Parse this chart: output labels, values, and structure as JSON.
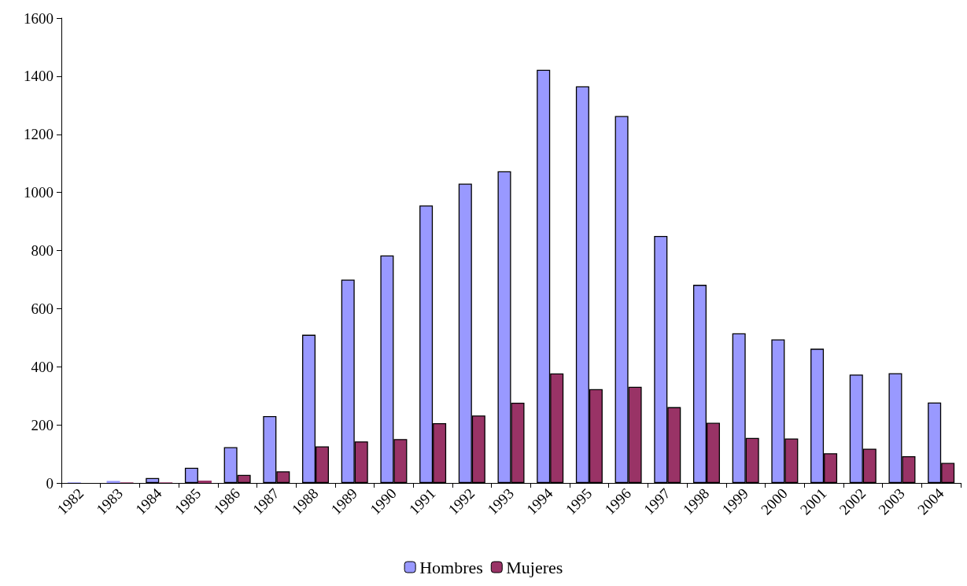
{
  "chart_data": {
    "type": "bar",
    "categories": [
      "1982",
      "1983",
      "1984",
      "1985",
      "1986",
      "1987",
      "1988",
      "1989",
      "1990",
      "1991",
      "1992",
      "1993",
      "1994",
      "1995",
      "1996",
      "1997",
      "1998",
      "1999",
      "2000",
      "2001",
      "2002",
      "2003",
      "2004"
    ],
    "series": [
      {
        "name": "Hombres",
        "color": "#9999ff",
        "values": [
          2,
          7,
          17,
          52,
          123,
          230,
          510,
          700,
          783,
          955,
          1030,
          1073,
          1422,
          1365,
          1263,
          850,
          682,
          515,
          494,
          462,
          373,
          378,
          277
        ]
      },
      {
        "name": "Mujeres",
        "color": "#993366",
        "values": [
          0,
          2,
          2,
          8,
          28,
          40,
          126,
          143,
          151,
          206,
          232,
          276,
          377,
          323,
          331,
          261,
          207,
          155,
          153,
          102,
          118,
          92,
          69
        ]
      }
    ],
    "ylim": [
      0,
      1600
    ],
    "yticks": [
      0,
      200,
      400,
      600,
      800,
      1000,
      1200,
      1400,
      1600
    ],
    "grid": false,
    "legend": "bottom"
  }
}
